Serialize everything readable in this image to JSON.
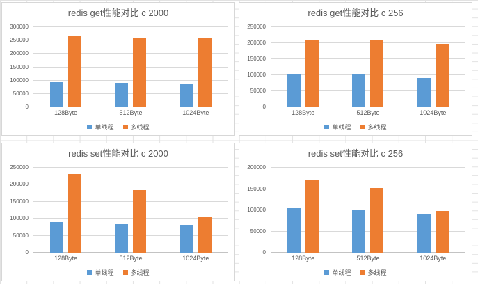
{
  "page": {
    "kind": "excel-worksheet-with-embedded-charts"
  },
  "colors": {
    "series_blue": "#5B9BD5",
    "series_orange": "#ED7D31",
    "text_gray": "#595959",
    "chart_gridline": "#D9D9D9",
    "panel_border": "#D7D7D7",
    "sheet_gridline": "#E2E2E2"
  },
  "chart_data": [
    {
      "key": "redis-get-c2000",
      "type": "bar",
      "title": "redis get性能对比 c 2000",
      "categories": [
        "128Byte",
        "512Byte",
        "1024Byte"
      ],
      "series": [
        {
          "key": "single-thread",
          "name": "单线程",
          "color": "#5B9BD5",
          "values": [
            95000,
            91000,
            88000
          ]
        },
        {
          "key": "multi-thread",
          "name": "多线程",
          "color": "#ED7D31",
          "values": [
            268000,
            261000,
            258000
          ]
        }
      ],
      "ylim": [
        0,
        300000
      ],
      "ytick_step": 50000,
      "yticks": [
        "300000",
        "250000",
        "200000",
        "150000",
        "100000",
        "50000",
        "0"
      ],
      "grid": true,
      "legend_position": "bottom"
    },
    {
      "key": "redis-get-c256",
      "type": "bar",
      "title": "redis get性能对比 c 256",
      "categories": [
        "128Byte",
        "512Byte",
        "1024Byte"
      ],
      "series": [
        {
          "key": "single-thread",
          "name": "单线程",
          "color": "#5B9BD5",
          "values": [
            105000,
            103000,
            92000
          ]
        },
        {
          "key": "multi-thread",
          "name": "多线程",
          "color": "#ED7D31",
          "values": [
            211000,
            209000,
            198000
          ]
        }
      ],
      "ylim": [
        0,
        250000
      ],
      "ytick_step": 50000,
      "yticks": [
        "250000",
        "200000",
        "150000",
        "100000",
        "50000",
        "0"
      ],
      "grid": true,
      "legend_position": "bottom"
    },
    {
      "key": "redis-set-c2000",
      "type": "bar",
      "title": "redis set性能对比 c 2000",
      "categories": [
        "128Byte",
        "512Byte",
        "1024Byte"
      ],
      "series": [
        {
          "key": "single-thread",
          "name": "单线程",
          "color": "#5B9BD5",
          "values": [
            90000,
            85000,
            83000
          ]
        },
        {
          "key": "multi-thread",
          "name": "多线程",
          "color": "#ED7D31",
          "values": [
            231000,
            184000,
            104000
          ]
        }
      ],
      "ylim": [
        0,
        250000
      ],
      "ytick_step": 50000,
      "yticks": [
        "250000",
        "200000",
        "150000",
        "100000",
        "50000",
        "0"
      ],
      "grid": true,
      "legend_position": "bottom"
    },
    {
      "key": "redis-set-c256",
      "type": "bar",
      "title": "redis set性能对比 c 256",
      "categories": [
        "128Byte",
        "512Byte",
        "1024Byte"
      ],
      "series": [
        {
          "key": "single-thread",
          "name": "单线程",
          "color": "#5B9BD5",
          "values": [
            105000,
            102000,
            90000
          ]
        },
        {
          "key": "multi-thread",
          "name": "多线程",
          "color": "#ED7D31",
          "values": [
            171000,
            153000,
            99000
          ]
        }
      ],
      "ylim": [
        0,
        200000
      ],
      "ytick_step": 50000,
      "yticks": [
        "200000",
        "150000",
        "100000",
        "50000",
        "0"
      ],
      "grid": true,
      "legend_position": "bottom"
    }
  ]
}
